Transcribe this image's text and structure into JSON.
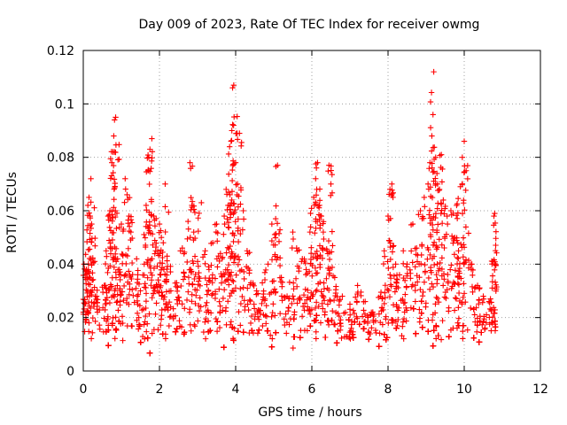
{
  "chart_data": {
    "type": "scatter",
    "title": "Day 009 of 2023, Rate Of TEC Index for receiver owmg",
    "xlabel": "GPS time / hours",
    "ylabel": "ROTI / TECUs",
    "xlim": [
      0,
      12
    ],
    "ylim": [
      0,
      0.12
    ],
    "xticks": [
      "0",
      "2",
      "4",
      "6",
      "8",
      "10",
      "12"
    ],
    "yticks": [
      "0",
      "0.02",
      "0.04",
      "0.06",
      "0.08",
      "0.1",
      "0.12"
    ],
    "grid": true,
    "marker": "plus",
    "color": "#ff0000",
    "x_coverage": [
      0,
      10.85
    ],
    "series": [
      {
        "name": "ROTI",
        "points": [
          [
            0.02,
            0.04
          ],
          [
            0.05,
            0.035
          ],
          [
            0.08,
            0.038
          ],
          [
            0.12,
            0.062
          ],
          [
            0.15,
            0.065
          ],
          [
            0.18,
            0.058
          ],
          [
            0.2,
            0.072
          ],
          [
            0.22,
            0.055
          ],
          [
            0.3,
            0.041
          ],
          [
            0.35,
            0.028
          ],
          [
            0.55,
            0.032
          ],
          [
            0.6,
            0.045
          ],
          [
            0.65,
            0.058
          ],
          [
            0.7,
            0.06
          ],
          [
            0.75,
            0.078
          ],
          [
            0.78,
            0.082
          ],
          [
            0.8,
            0.088
          ],
          [
            0.82,
            0.094
          ],
          [
            0.85,
            0.095
          ],
          [
            0.9,
            0.042
          ],
          [
            0.95,
            0.038
          ],
          [
            1.0,
            0.055
          ],
          [
            1.1,
            0.072
          ],
          [
            1.15,
            0.066
          ],
          [
            1.2,
            0.058
          ],
          [
            1.25,
            0.052
          ],
          [
            1.4,
            0.042
          ],
          [
            1.5,
            0.03
          ],
          [
            1.6,
            0.04
          ],
          [
            1.65,
            0.062
          ],
          [
            1.7,
            0.075
          ],
          [
            1.72,
            0.08
          ],
          [
            1.75,
            0.083
          ],
          [
            1.8,
            0.087
          ],
          [
            1.85,
            0.058
          ],
          [
            1.9,
            0.045
          ],
          [
            2.0,
            0.055
          ],
          [
            2.05,
            0.05
          ],
          [
            2.1,
            0.048
          ],
          [
            2.15,
            0.07
          ],
          [
            2.2,
            0.043
          ],
          [
            2.3,
            0.03
          ],
          [
            2.45,
            0.033
          ],
          [
            2.6,
            0.046
          ],
          [
            2.75,
            0.056
          ],
          [
            2.8,
            0.078
          ],
          [
            2.85,
            0.062
          ],
          [
            2.9,
            0.052
          ],
          [
            3.0,
            0.041
          ],
          [
            3.1,
            0.063
          ],
          [
            3.2,
            0.045
          ],
          [
            3.3,
            0.038
          ],
          [
            3.4,
            0.048
          ],
          [
            3.5,
            0.055
          ],
          [
            3.6,
            0.044
          ],
          [
            3.7,
            0.058
          ],
          [
            3.75,
            0.068
          ],
          [
            3.8,
            0.062
          ],
          [
            3.85,
            0.066
          ],
          [
            3.88,
            0.086
          ],
          [
            3.9,
            0.09
          ],
          [
            3.92,
            0.106
          ],
          [
            3.95,
            0.107
          ],
          [
            4.0,
            0.078
          ],
          [
            4.05,
            0.07
          ],
          [
            4.1,
            0.089
          ],
          [
            4.2,
            0.06
          ],
          [
            4.3,
            0.045
          ],
          [
            4.4,
            0.033
          ],
          [
            4.55,
            0.03
          ],
          [
            4.7,
            0.033
          ],
          [
            4.85,
            0.04
          ],
          [
            4.95,
            0.055
          ],
          [
            5.05,
            0.057
          ],
          [
            5.1,
            0.077
          ],
          [
            5.2,
            0.035
          ],
          [
            5.35,
            0.028
          ],
          [
            5.5,
            0.052
          ],
          [
            5.6,
            0.046
          ],
          [
            5.75,
            0.042
          ],
          [
            5.85,
            0.038
          ],
          [
            5.95,
            0.052
          ],
          [
            6.05,
            0.065
          ],
          [
            6.1,
            0.072
          ],
          [
            6.12,
            0.076
          ],
          [
            6.15,
            0.078
          ],
          [
            6.2,
            0.062
          ],
          [
            6.25,
            0.058
          ],
          [
            6.3,
            0.052
          ],
          [
            6.4,
            0.045
          ],
          [
            6.45,
            0.077
          ],
          [
            6.5,
            0.07
          ],
          [
            6.6,
            0.035
          ],
          [
            6.8,
            0.028
          ],
          [
            7.0,
            0.025
          ],
          [
            7.2,
            0.032
          ],
          [
            7.4,
            0.026
          ],
          [
            7.6,
            0.022
          ],
          [
            7.8,
            0.028
          ],
          [
            7.9,
            0.045
          ],
          [
            8.0,
            0.058
          ],
          [
            8.05,
            0.068
          ],
          [
            8.1,
            0.07
          ],
          [
            8.2,
            0.04
          ],
          [
            8.3,
            0.036
          ],
          [
            8.4,
            0.045
          ],
          [
            8.5,
            0.04
          ],
          [
            8.65,
            0.055
          ],
          [
            8.75,
            0.046
          ],
          [
            8.85,
            0.06
          ],
          [
            8.95,
            0.065
          ],
          [
            9.05,
            0.07
          ],
          [
            9.1,
            0.078
          ],
          [
            9.15,
            0.088
          ],
          [
            9.18,
            0.096
          ],
          [
            9.2,
            0.112
          ],
          [
            9.25,
            0.08
          ],
          [
            9.3,
            0.07
          ],
          [
            9.35,
            0.068
          ],
          [
            9.4,
            0.081
          ],
          [
            9.45,
            0.064
          ],
          [
            9.55,
            0.058
          ],
          [
            9.65,
            0.06
          ],
          [
            9.75,
            0.05
          ],
          [
            9.8,
            0.062
          ],
          [
            9.85,
            0.045
          ],
          [
            9.9,
            0.069
          ],
          [
            9.95,
            0.08
          ],
          [
            10.0,
            0.086
          ],
          [
            10.05,
            0.075
          ],
          [
            10.2,
            0.04
          ],
          [
            10.35,
            0.032
          ],
          [
            10.5,
            0.028
          ],
          [
            10.65,
            0.026
          ],
          [
            10.75,
            0.041
          ],
          [
            10.78,
            0.058
          ],
          [
            10.8,
            0.059
          ]
        ]
      }
    ]
  }
}
